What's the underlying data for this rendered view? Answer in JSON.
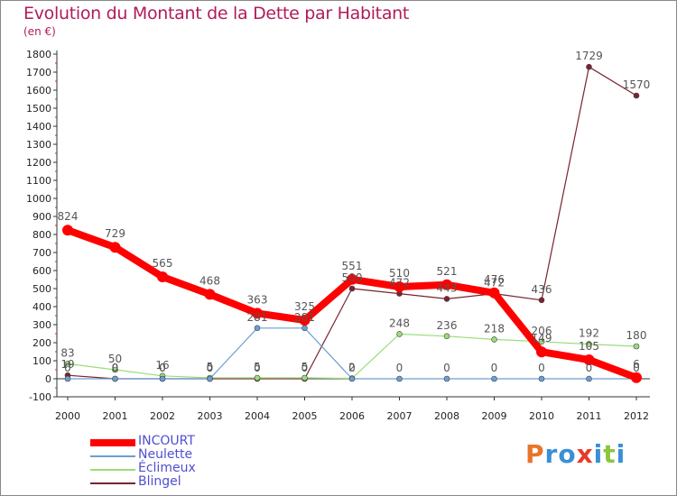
{
  "title": "Evolution du Montant de la Dette par Habitant",
  "subtitle": "(en €)",
  "logo": {
    "letters": [
      "P",
      "r",
      "o",
      "x",
      "i",
      "t",
      "i"
    ],
    "colors": [
      "#e8742a",
      "#3a8fd6",
      "#3a8fd6",
      "#e83a2a",
      "#3a8fd6",
      "#8cc63f",
      "#3a8fd6"
    ]
  },
  "chart_data": {
    "type": "line",
    "title": "Evolution du Montant de la Dette par Habitant",
    "ylabel": "(en €)",
    "x": [
      "2000",
      "2001",
      "2002",
      "2003",
      "2004",
      "2005",
      "2006",
      "2007",
      "2008",
      "2009",
      "2010",
      "2011",
      "2012"
    ],
    "ylim": [
      -100,
      1800
    ],
    "yticks": [
      "-100",
      "0",
      "100",
      "200",
      "300",
      "400",
      "500",
      "600",
      "700",
      "800",
      "900",
      "1000",
      "1100",
      "1200",
      "1300",
      "1400",
      "1500",
      "1600",
      "1700",
      "1800"
    ],
    "grid": false,
    "legend_position": "bottom-left",
    "series": [
      {
        "name": "INCOURT",
        "color": "#ff0000",
        "values": [
          824,
          729,
          565,
          468,
          363,
          325,
          551,
          510,
          521,
          476,
          149,
          105,
          6
        ],
        "labels": [
          "824",
          "729",
          "565",
          "468",
          "363",
          "325",
          "551",
          "510",
          "521",
          "476",
          "149",
          "105",
          "6"
        ]
      },
      {
        "name": "Neulette",
        "color": "#6a9fd2",
        "values": [
          0,
          0,
          0,
          0,
          281,
          281,
          0,
          0,
          0,
          0,
          0,
          0,
          0
        ],
        "labels": [
          "0",
          "0",
          "0",
          "0",
          "281",
          "281",
          "0",
          "0",
          "0",
          "0",
          "0",
          "0",
          "0"
        ]
      },
      {
        "name": "Éclimeux",
        "color": "#9bdc7a",
        "values": [
          83,
          50,
          16,
          5,
          5,
          5,
          2,
          248,
          236,
          218,
          206,
          192,
          180
        ],
        "labels": [
          "83",
          "50",
          "16",
          "5",
          "5",
          "5",
          "2",
          "248",
          "236",
          "218",
          "206",
          "192",
          "180"
        ]
      },
      {
        "name": "Blingel",
        "color": "#7a2230",
        "values": [
          19,
          0,
          0,
          0,
          0,
          0,
          500,
          472,
          443,
          472,
          436,
          1729,
          1570
        ],
        "labels": [
          "19",
          "0",
          "0",
          "0",
          "0",
          "0",
          "500",
          "472",
          "443",
          "472",
          "436",
          "1729",
          "1570"
        ]
      }
    ]
  }
}
